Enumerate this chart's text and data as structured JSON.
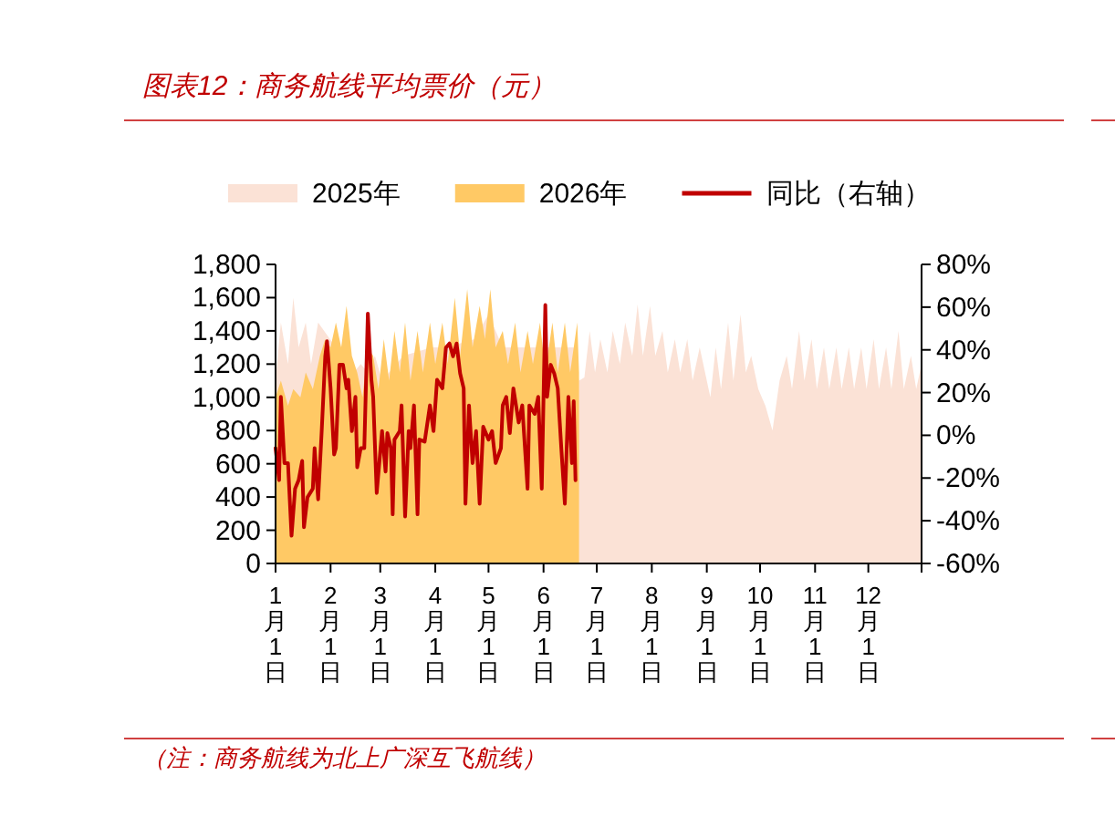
{
  "chart_data": {
    "type": "area",
    "title": "图表12：商务航线平均票价（元）",
    "annotations": [
      "（注：商务航线为北上广深互飞航线）"
    ],
    "legend": "top",
    "xlim": [
      "--01-01",
      "--12-31"
    ],
    "xticks": [
      {
        "value": "--01-01",
        "label": "1月1日"
      },
      {
        "value": "--02-01",
        "label": "2月1日"
      },
      {
        "value": "--03-01",
        "label": "3月1日"
      },
      {
        "value": "--04-01",
        "label": "4月1日"
      },
      {
        "value": "--05-01",
        "label": "5月1日"
      },
      {
        "value": "--06-01",
        "label": "6月1日"
      },
      {
        "value": "--07-01",
        "label": "7月1日"
      },
      {
        "value": "--08-01",
        "label": "8月1日"
      },
      {
        "value": "--09-01",
        "label": "9月1日"
      },
      {
        "value": "--10-01",
        "label": "10月1日"
      },
      {
        "value": "--11-01",
        "label": "11月1日"
      },
      {
        "value": "--12-01",
        "label": "12月1日"
      },
      {
        "value": "--12-31",
        "label": null
      }
    ],
    "ylim": [
      0,
      1800
    ],
    "yticks": [
      0,
      200,
      400,
      600,
      800,
      {
        "value": 1000,
        "label": "1,000"
      },
      {
        "value": 1200,
        "label": "1,200"
      },
      {
        "value": 1400,
        "label": "1,400"
      },
      {
        "value": 1600,
        "label": "1,600"
      },
      {
        "value": 1800,
        "label": "1,800"
      }
    ],
    "y2lim": [
      -60,
      80
    ],
    "y2ticks": [
      {
        "value": -60,
        "label": "-60%"
      },
      {
        "value": -40,
        "label": "-40%"
      },
      {
        "value": -20,
        "label": "-20%"
      },
      {
        "value": 0,
        "label": "0%"
      },
      {
        "value": 20,
        "label": "20%"
      },
      {
        "value": 40,
        "label": "40%"
      },
      {
        "value": 60,
        "label": "60%"
      },
      {
        "value": 80,
        "label": "80%"
      }
    ],
    "series": [
      {
        "name": "2025年",
        "color": "#fbe2d6",
        "x": [
          "--01-01",
          "--01-04",
          "--01-08",
          "--01-11",
          "--01-14",
          "--01-18",
          "--01-21",
          "--01-25",
          "--02-14",
          "--02-18",
          "--02-22",
          "--02-26",
          "--03-02",
          "--03-14",
          "--03-30",
          "--04-07",
          "--04-23",
          "--05-01",
          "--05-09",
          "--05-17",
          "--05-25",
          "--06-02",
          "--06-10",
          "--06-18",
          "--06-21",
          "--06-24",
          "--06-27",
          "--06-30",
          "--07-03",
          "--07-07",
          "--07-10",
          "--07-14",
          "--07-17",
          "--07-21",
          "--07-24",
          "--07-27",
          "--07-31",
          "--08-03",
          "--08-07",
          "--08-10",
          "--08-14",
          "--08-17",
          "--08-21",
          "--08-24",
          "--08-28",
          "--08-31",
          "--09-03",
          "--09-06",
          "--09-09",
          "--09-13",
          "--09-16",
          "--09-20",
          "--09-23",
          "--09-26",
          "--09-30",
          "--10-04",
          "--10-08",
          "--10-12",
          "--10-16",
          "--10-19",
          "--10-23",
          "--10-26",
          "--10-30",
          "--11-02",
          "--11-06",
          "--11-09",
          "--11-13",
          "--11-16",
          "--11-20",
          "--11-23",
          "--11-27",
          "--11-30",
          "--12-04",
          "--12-07",
          "--12-11",
          "--12-14",
          "--12-18",
          "--12-21",
          "--12-25",
          "--12-28",
          "--12-31"
        ],
        "values": [
          1100,
          1450,
          1200,
          1600,
          1300,
          1450,
          1200,
          1450,
          1150,
          1200,
          1150,
          1250,
          1100,
          1250,
          1300,
          1300,
          1350,
          1500,
          1300,
          1300,
          1300,
          1300,
          1300,
          1300,
          1100,
          1120,
          1400,
          1150,
          1350,
          1150,
          1400,
          1200,
          1450,
          1250,
          1560,
          1250,
          1550,
          1250,
          1400,
          1150,
          1350,
          1150,
          1350,
          1100,
          1300,
          1150,
          1000,
          1300,
          1050,
          1450,
          1100,
          1500,
          1150,
          1250,
          1050,
          950,
          800,
          1100,
          1250,
          1050,
          1400,
          1100,
          1350,
          1050,
          1300,
          1050,
          1300,
          1050,
          1300,
          1050,
          1300,
          1050,
          1350,
          1050,
          1300,
          1050,
          1400,
          1050,
          1250,
          1050,
          1200
        ]
      },
      {
        "name": "2026年",
        "color": "#ffc965",
        "x": [
          "--01-01",
          "--01-04",
          "--01-08",
          "--01-11",
          "--01-15",
          "--01-18",
          "--01-22",
          "--01-26",
          "--01-29",
          "--02-01",
          "--02-04",
          "--02-07",
          "--02-10",
          "--02-13",
          "--02-16",
          "--02-19",
          "--02-22",
          "--02-25",
          "--02-28",
          "--03-03",
          "--03-06",
          "--03-09",
          "--03-12",
          "--03-15",
          "--03-18",
          "--03-22",
          "--03-25",
          "--03-29",
          "--04-01",
          "--04-05",
          "--04-08",
          "--04-12",
          "--04-15",
          "--04-19",
          "--04-22",
          "--04-26",
          "--04-29",
          "--05-02",
          "--05-05",
          "--05-09",
          "--05-12",
          "--05-16",
          "--05-19",
          "--05-23",
          "--05-26",
          "--05-30",
          "--06-02",
          "--06-06",
          "--06-09",
          "--06-13",
          "--06-16",
          "--06-20",
          "--06-21"
        ],
        "values": [
          1000,
          1100,
          950,
          1050,
          1000,
          1150,
          1050,
          1250,
          1350,
          1300,
          1450,
          1300,
          1550,
          1250,
          1150,
          1000,
          1300,
          1250,
          1050,
          1350,
          1100,
          1400,
          1150,
          1450,
          1100,
          1400,
          1150,
          1450,
          1200,
          1450,
          1200,
          1600,
          1250,
          1650,
          1300,
          1550,
          1350,
          1650,
          1300,
          1400,
          1200,
          1450,
          1150,
          1400,
          1200,
          1450,
          1150,
          1450,
          1150,
          1450,
          1150,
          1450,
          1150
        ]
      },
      {
        "name": "同比（右轴）",
        "type": "line",
        "axis": "y2",
        "color": "#c00000",
        "marker": "none",
        "line_style": "solid",
        "x": [
          "--01-01",
          "--01-03",
          "--01-04",
          "--01-06",
          "--01-08",
          "--01-10",
          "--01-12",
          "--01-14",
          "--01-16",
          "--01-17",
          "--01-19",
          "--01-22",
          "--01-23",
          "--01-25",
          "--01-27",
          "--01-29",
          "--01-30",
          "--02-01",
          "--02-03",
          "--02-04",
          "--02-06",
          "--02-08",
          "--02-10",
          "--02-11",
          "--02-13",
          "--02-15",
          "--02-16",
          "--02-18",
          "--02-20",
          "--02-22",
          "--02-24",
          "--02-25",
          "--02-27",
          "--03-02",
          "--03-04",
          "--03-05",
          "--03-07",
          "--03-08",
          "--03-09",
          "--03-12",
          "--03-13",
          "--03-15",
          "--03-17",
          "--03-18",
          "--03-20",
          "--03-22",
          "--03-23",
          "--03-26",
          "--03-29",
          "--03-31",
          "--04-02",
          "--04-05",
          "--04-07",
          "--04-09",
          "--04-11",
          "--04-13",
          "--04-15",
          "--04-17",
          "--04-18",
          "--04-20",
          "--04-22",
          "--04-24",
          "--04-26",
          "--04-28",
          "--05-01",
          "--05-03",
          "--05-05",
          "--05-08",
          "--05-09",
          "--05-11",
          "--05-13",
          "--05-15",
          "--05-18",
          "--05-20",
          "--05-23",
          "--05-24",
          "--05-27",
          "--05-29",
          "--05-31",
          "--06-02",
          "--06-03",
          "--06-05",
          "--06-07",
          "--06-09",
          "--06-11",
          "--06-13",
          "--06-15",
          "--06-17",
          "--06-18",
          "--06-19"
        ],
        "values": [
          -6,
          -21,
          18,
          -13,
          -13,
          -47,
          -25,
          -21,
          -12,
          -43,
          -29,
          -25,
          -6,
          -30,
          2,
          37,
          44,
          22,
          -9,
          -6,
          33,
          33,
          22,
          26,
          2,
          18,
          -15,
          -6,
          -6,
          57,
          26,
          18,
          -27,
          2,
          -17,
          1,
          -6,
          -37,
          -2,
          2,
          14,
          -38,
          2,
          -6,
          14,
          -37,
          -2,
          -3,
          14,
          2,
          26,
          22,
          41,
          43,
          37,
          43,
          29,
          22,
          -32,
          14,
          -13,
          2,
          -32,
          4,
          -2,
          2,
          -13,
          -6,
          14,
          18,
          1,
          22,
          6,
          14,
          -25,
          14,
          10,
          18,
          -25,
          61,
          18,
          33,
          29,
          22,
          -6,
          -32,
          18,
          -13,
          16,
          -21
        ]
      }
    ]
  }
}
